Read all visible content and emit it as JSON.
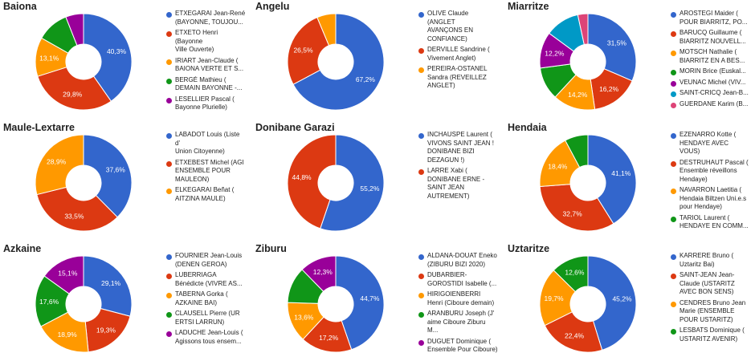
{
  "chart_data": [
    {
      "type": "pie",
      "title": "Baiona",
      "series": [
        {
          "name": "ETXEGARAI Jean-René\n(BAYONNE, TOUJOU...",
          "value": 40.3,
          "label": "40,3%",
          "color": "#3366cc"
        },
        {
          "name": "ETXETO Henri (Bayonne\nVille Ouverte)",
          "value": 29.8,
          "label": "29,8%",
          "color": "#dc3912"
        },
        {
          "name": "IRIART Jean-Claude (\nBAIONA VERTE ET S...",
          "value": 13.1,
          "label": "13,1%",
          "color": "#ff9900"
        },
        {
          "name": "BERGÉ Mathieu (\nDEMAIN BAYONNE -...",
          "value": 10.8,
          "label": "",
          "color": "#109618"
        },
        {
          "name": "LESELLIER Pascal (\nBayonne Plurielle)",
          "value": 6.0,
          "label": "",
          "color": "#990099"
        }
      ]
    },
    {
      "type": "pie",
      "title": "Angelu",
      "series": [
        {
          "name": "OLIVE Claude (ANGLET\nAVANÇONS EN\nCONFIANCE)",
          "value": 67.2,
          "label": "67,2%",
          "color": "#3366cc"
        },
        {
          "name": "DERVILLE Sandrine (\nVivement Anglet)",
          "value": 26.5,
          "label": "26,5%",
          "color": "#dc3912"
        },
        {
          "name": "PEREIRA-OSTANEL\nSandra (REVEILLEZ\nANGLET)",
          "value": 6.3,
          "label": "",
          "color": "#ff9900"
        }
      ]
    },
    {
      "type": "pie",
      "title": "Miarritze",
      "series": [
        {
          "name": "AROSTEGI Maider (\nPOUR BIARRITZ, PO...",
          "value": 31.5,
          "label": "31,5%",
          "color": "#3366cc"
        },
        {
          "name": "BARUCQ Guillaume (\nBIARRITZ NOUVELL...",
          "value": 16.2,
          "label": "16,2%",
          "color": "#dc3912"
        },
        {
          "name": "MOTSCH Nathalie (\nBIARRITZ EN A BES...",
          "value": 14.2,
          "label": "14,2%",
          "color": "#ff9900"
        },
        {
          "name": "MORIN Brice (Euskal...",
          "value": 11.0,
          "label": "",
          "color": "#109618"
        },
        {
          "name": "VEUNAC Michel (VIV...",
          "value": 12.2,
          "label": "12,2%",
          "color": "#990099"
        },
        {
          "name": "SAINT-CRICQ Jean-B...",
          "value": 11.5,
          "label": "",
          "color": "#0099c6"
        },
        {
          "name": "GUERDANE Karim (B...",
          "value": 3.4,
          "label": "",
          "color": "#dd4477"
        }
      ]
    },
    {
      "type": "pie",
      "title": "Maule-Lextarre",
      "series": [
        {
          "name": "LABADOT Louis (Liste d'\nUnion Citoyenne)",
          "value": 37.6,
          "label": "37,6%",
          "color": "#3366cc"
        },
        {
          "name": "ETXEBEST Michel (AGI\nENSEMBLE POUR\nMAULEON)",
          "value": 33.5,
          "label": "33,5%",
          "color": "#dc3912"
        },
        {
          "name": "ELKEGARAI Beñat (\nAITZINA MAULE)",
          "value": 28.9,
          "label": "28,9%",
          "color": "#ff9900"
        }
      ]
    },
    {
      "type": "pie",
      "title": "Donibane Garazi",
      "series": [
        {
          "name": "INCHAUSPE Laurent (\nVIVONS SAINT JEAN !\nDONIBANE BIZI\nDEZAGUN !)",
          "value": 55.2,
          "label": "55,2%",
          "color": "#3366cc"
        },
        {
          "name": "LARRE Xabi (\nDONIBANE ERNE -\nSAINT JEAN\nAUTREMENT)",
          "value": 44.8,
          "label": "44,8%",
          "color": "#dc3912"
        }
      ]
    },
    {
      "type": "pie",
      "title": "Hendaia",
      "series": [
        {
          "name": "EZENARRO Kotte (\nHENDAYE AVEC\nVOUS)",
          "value": 41.1,
          "label": "41,1%",
          "color": "#3366cc"
        },
        {
          "name": "DESTRUHAUT Pascal (\nEnsemble réveillons\nHendaye)",
          "value": 32.7,
          "label": "32,7%",
          "color": "#dc3912"
        },
        {
          "name": "NAVARRON Laetitia (\nHendaia Biltzen Uni.e.s\npour Hendaye)",
          "value": 18.4,
          "label": "18,4%",
          "color": "#ff9900"
        },
        {
          "name": "TARIOL Laurent (\nHENDAYE EN COMM...",
          "value": 7.8,
          "label": "",
          "color": "#109618"
        }
      ]
    },
    {
      "type": "pie",
      "title": "Azkaine",
      "series": [
        {
          "name": "FOURNIER Jean-Louis\n(DENEN GEROA)",
          "value": 29.1,
          "label": "29,1%",
          "color": "#3366cc"
        },
        {
          "name": "LUBERRIAGA\nBénédicte (VIVRE AS...",
          "value": 19.3,
          "label": "19,3%",
          "color": "#dc3912"
        },
        {
          "name": "TABERNA Gorka (\nAZKAINE BAI)",
          "value": 18.9,
          "label": "18,9%",
          "color": "#ff9900"
        },
        {
          "name": "CLAUSELL Pierre (UR\nERTSI LARRUN)",
          "value": 17.6,
          "label": "17,6%",
          "color": "#109618"
        },
        {
          "name": "LADUCHE Jean-Louis (\nAgissons tous ensem...",
          "value": 15.1,
          "label": "15,1%",
          "color": "#990099"
        }
      ]
    },
    {
      "type": "pie",
      "title": "Ziburu",
      "series": [
        {
          "name": "ALDANA-DOUAT Eneko\n(ZIBURU BIZI 2020)",
          "value": 44.7,
          "label": "44,7%",
          "color": "#3366cc"
        },
        {
          "name": "DUBARBIER-\nGOROSTIDI Isabelle (...",
          "value": 17.2,
          "label": "17,2%",
          "color": "#dc3912"
        },
        {
          "name": "HIRIGOIENBERRI\nHenri (Ciboure demain)",
          "value": 13.6,
          "label": "13,6%",
          "color": "#ff9900"
        },
        {
          "name": "ARANBURU Joseph (J'\naime Ciboure Ziburu M...",
          "value": 12.2,
          "label": "",
          "color": "#109618"
        },
        {
          "name": "DUGUET Dominique (\nEnsemble Pour Ciboure)",
          "value": 12.3,
          "label": "12,3%",
          "color": "#990099"
        }
      ]
    },
    {
      "type": "pie",
      "title": "Uztaritze",
      "series": [
        {
          "name": "KARRERE Bruno (\nUztaritz Bai)",
          "value": 45.2,
          "label": "45,2%",
          "color": "#3366cc"
        },
        {
          "name": "SAINT-JEAN Jean-\nClaude (USTARITZ\nAVEC BON SENS)",
          "value": 22.4,
          "label": "22,4%",
          "color": "#dc3912"
        },
        {
          "name": "CENDRES Bruno Jean\nMarie (ENSEMBLE\nPOUR USTARITZ)",
          "value": 19.7,
          "label": "19,7%",
          "color": "#ff9900"
        },
        {
          "name": "LESBATS Dominique (\nUSTARITZ AVENIR)",
          "value": 12.6,
          "label": "12,6%",
          "color": "#109618"
        }
      ]
    }
  ]
}
